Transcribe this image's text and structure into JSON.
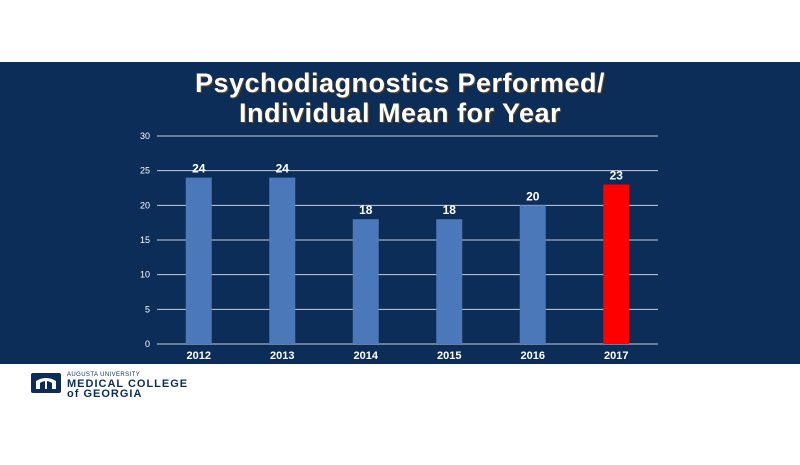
{
  "title_lines": [
    "Psychodiagnostics Performed/",
    "Individual Mean for Year"
  ],
  "colors": {
    "background": "#0c2d57",
    "bar": "#4a78b8",
    "highlight_bar": "#ff0000",
    "grid": "#c8cfdc",
    "text": "#ffffff"
  },
  "footer": {
    "logo_icon": "university-shield-icon",
    "university": "AUGUSTA UNIVERSITY",
    "college_line1": "MEDICAL COLLEGE",
    "college_line2": "of GEORGIA"
  },
  "chart_data": {
    "type": "bar",
    "title": "Psychodiagnostics Performed/ Individual Mean for Year",
    "xlabel": "",
    "ylabel": "",
    "categories": [
      "2012",
      "2013",
      "2014",
      "2015",
      "2016",
      "2017"
    ],
    "values": [
      24,
      24,
      18,
      18,
      20,
      23
    ],
    "data_labels": [
      "24",
      "24",
      "18",
      "18",
      "20",
      "23"
    ],
    "highlighted_category": "2017",
    "ylim": [
      0,
      30
    ],
    "yticks": [
      0,
      5,
      10,
      15,
      20,
      25,
      30
    ],
    "grid": true,
    "legend": "none"
  }
}
